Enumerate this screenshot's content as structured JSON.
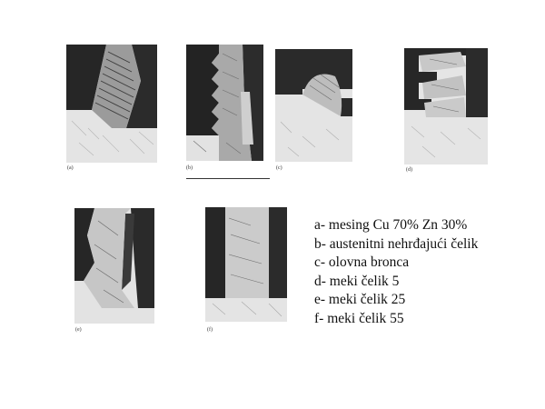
{
  "figure": {
    "panels": [
      {
        "id": "a",
        "caption": "(a)"
      },
      {
        "id": "b",
        "caption": "(b)"
      },
      {
        "id": "c",
        "caption": "(c)"
      },
      {
        "id": "d",
        "caption": "(d)"
      },
      {
        "id": "e",
        "caption": "(e)"
      },
      {
        "id": "f",
        "caption": "(f)"
      }
    ],
    "legend": [
      "a- mesing Cu 70% Zn 30%",
      "b- austenitni nehrđajući čelik",
      "c- olovna bronca",
      "d- meki čelik 5",
      "e- meki čelik 25",
      "f- meki čelik 55"
    ]
  }
}
